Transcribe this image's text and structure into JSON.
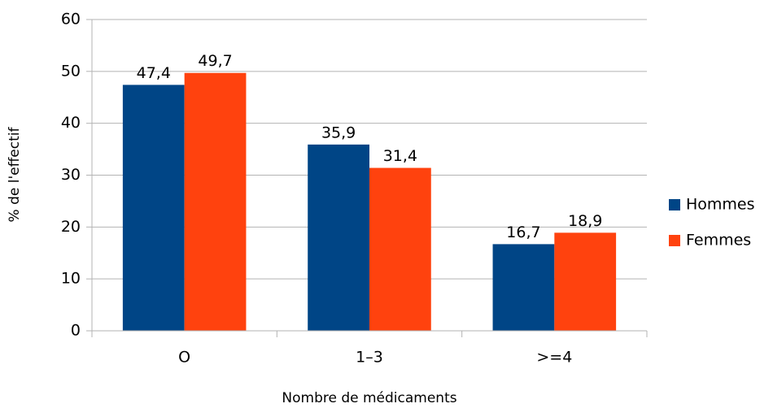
{
  "chart_data": {
    "type": "bar",
    "xlabel": "Nombre de médicaments",
    "ylabel": "% de l'effectif",
    "categories": [
      "O",
      "1–3",
      ">=4"
    ],
    "series": [
      {
        "name": "Hommes",
        "color": "#004586",
        "values": [
          47.4,
          35.9,
          16.7
        ],
        "value_labels": [
          "47,4",
          "35,9",
          "16,7"
        ]
      },
      {
        "name": "Femmes",
        "color": "#ff420e",
        "values": [
          49.7,
          31.4,
          18.9
        ],
        "value_labels": [
          "49,7",
          "31,4",
          "18,9"
        ]
      }
    ],
    "ylim": [
      0,
      60
    ],
    "yticks": [
      0,
      10,
      20,
      30,
      40,
      50,
      60
    ],
    "grid": true,
    "legend": "right"
  }
}
